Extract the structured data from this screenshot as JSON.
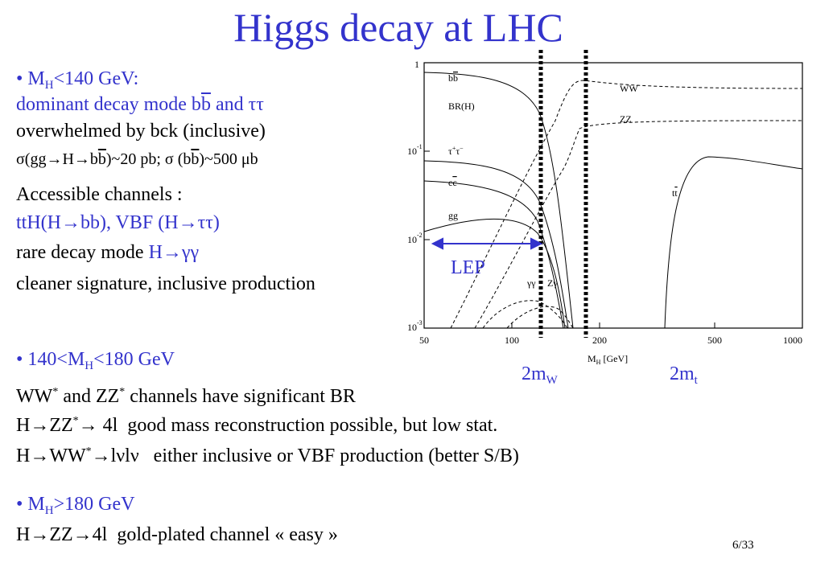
{
  "title": "Higgs decay at LHC",
  "sections": [
    {
      "lines": [
        [
          "M",
          "H",
          "<140 GeV:"
        ],
        [
          "dominant decay mode b",
          "b",
          " and ττ"
        ],
        [
          "overwhelmed by bck (inclusive)"
        ],
        [
          "σ(gg→H→b",
          "b",
          ")~20 pb; σ (b",
          "b",
          ")~500 μb"
        ],
        [
          "Accessible channels :"
        ],
        [
          "ttH(H→bb), VBF (H→ττ)"
        ],
        [
          "rare decay mode ",
          "H→γγ"
        ],
        [
          "cleaner signature, inclusive production"
        ]
      ]
    },
    {
      "lines": [
        [
          "140<M",
          "H",
          "<180 GeV"
        ],
        [
          "WW",
          "*",
          " and ZZ",
          "*",
          " channels have significant BR"
        ],
        [
          "H→ZZ",
          "*",
          "→ 4l  good mass reconstruction possible, but low stat."
        ],
        [
          "H→WW",
          "*",
          "→lνlν   either inclusive or VBF production (better S/B)"
        ]
      ]
    },
    {
      "lines": [
        [
          "M",
          "H",
          ">180 GeV"
        ],
        [
          "H→ZZ→4l  gold-plated channel « easy »"
        ]
      ]
    }
  ],
  "figure": {
    "y_tick_labels": [
      [
        "1"
      ],
      [
        "10",
        "-1"
      ],
      [
        "10",
        "-2"
      ],
      [
        "10",
        "-3"
      ]
    ],
    "x_tick_labels": [
      "50",
      "100",
      "200",
      "500",
      "1000"
    ],
    "x_label": [
      "M",
      "H",
      " [GeV]"
    ],
    "curve_labels": {
      "bb": [
        "b",
        "b"
      ],
      "br": "BR(H)",
      "tautau": [
        "τ",
        "+",
        "τ",
        "−"
      ],
      "cc": [
        "c",
        "c"
      ],
      "gg": "gg",
      "ww": "WW",
      "zz": "ZZ",
      "tt": [
        "t",
        "t"
      ],
      "gamgam": "γγ",
      "zgam": "Zγ"
    },
    "lep": "LEP",
    "mw": [
      "2m",
      "W"
    ],
    "mt": [
      "2m",
      "t"
    ]
  },
  "page_number": "6/33"
}
